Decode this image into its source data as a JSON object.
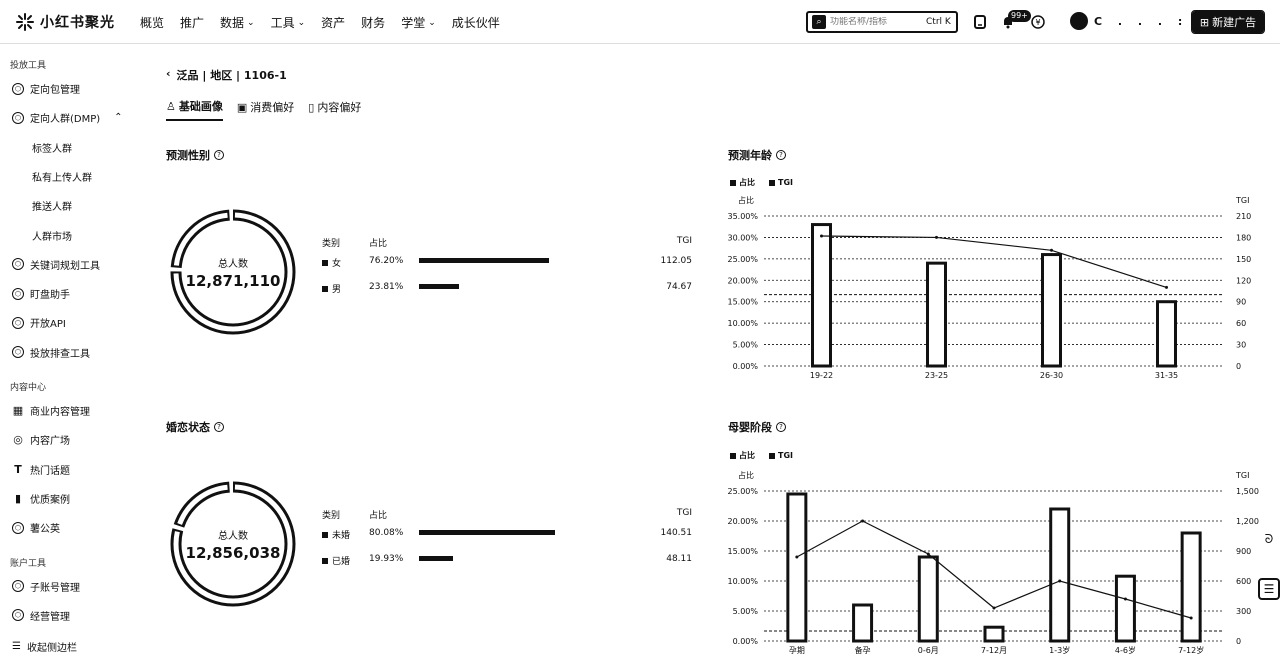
{
  "header": {
    "logo_text": "小红书聚光",
    "nav": [
      {
        "label": "概览",
        "dropdown": false
      },
      {
        "label": "推广",
        "dropdown": false
      },
      {
        "label": "数据",
        "dropdown": true
      },
      {
        "label": "工具",
        "dropdown": true
      },
      {
        "label": "资产",
        "dropdown": false
      },
      {
        "label": "财务",
        "dropdown": false
      },
      {
        "label": "学堂",
        "dropdown": true
      },
      {
        "label": "成长伙伴",
        "dropdown": false
      }
    ],
    "search_placeholder": "功能名称/指标",
    "search_shortcut": "Ctrl K",
    "notification_count": "99+",
    "user_name": "C . . . :",
    "new_ad_label": "新建广告"
  },
  "sidebar": {
    "groups": [
      {
        "title": "投放工具",
        "items": [
          {
            "label": "定向包管理",
            "icon": "hexagon-icon"
          },
          {
            "label": "定向人群(DMP)",
            "icon": "hexagon-icon",
            "expanded": true,
            "children": [
              "标签人群",
              "私有上传人群",
              "推送人群",
              "人群市场"
            ]
          },
          {
            "label": "关键词规划工具",
            "icon": "hexagon-icon"
          },
          {
            "label": "盯盘助手",
            "icon": "hexagon-icon"
          },
          {
            "label": "开放API",
            "icon": "hexagon-icon"
          },
          {
            "label": "投放排查工具",
            "icon": "hexagon-icon"
          }
        ]
      },
      {
        "title": "内容中心",
        "items": [
          {
            "label": "商业内容管理",
            "icon": "grid-icon"
          },
          {
            "label": "内容广场",
            "icon": "planet-icon"
          },
          {
            "label": "热门话题",
            "icon": "text-icon"
          },
          {
            "label": "优质案例",
            "icon": "book-icon"
          },
          {
            "label": "薯公英",
            "icon": "hexagon-icon"
          }
        ]
      },
      {
        "title": "账户工具",
        "items": [
          {
            "label": "子账号管理",
            "icon": "hexagon-icon"
          },
          {
            "label": "经营管理",
            "icon": "hexagon-icon"
          }
        ]
      }
    ],
    "collapse_label": "收起侧边栏"
  },
  "breadcrumb": "泛品 | 地区 | 1106-1",
  "tabs": [
    {
      "label": "基础画像",
      "active": true
    },
    {
      "label": "消费偏好",
      "active": false
    },
    {
      "label": "内容偏好",
      "active": false
    }
  ],
  "gender": {
    "title": "预测性别",
    "total_label": "总人数",
    "total_value": "12,871,110",
    "col_category": "类别",
    "col_share": "占比",
    "col_tgi": "TGI",
    "rows": [
      {
        "label": "女",
        "share": "76.20%",
        "share_value": 0.762,
        "tgi": "112.05"
      },
      {
        "label": "男",
        "share": "23.81%",
        "share_value": 0.2381,
        "tgi": "74.67"
      }
    ]
  },
  "marital": {
    "title": "婚恋状态",
    "total_label": "总人数",
    "total_value": "12,856,038",
    "col_category": "类别",
    "col_share": "占比",
    "col_tgi": "TGI",
    "rows": [
      {
        "label": "未婚",
        "share": "80.08%",
        "share_value": 0.8008,
        "tgi": "140.51"
      },
      {
        "label": "已婚",
        "share": "19.93%",
        "share_value": 0.1993,
        "tgi": "48.11"
      }
    ]
  },
  "age_chart_title": "预测年龄",
  "maternal_chart_title": "母婴阶段",
  "legend": {
    "share": "占比",
    "tgi": "TGI"
  },
  "chart_data": [
    {
      "type": "bar",
      "title": "预测年龄",
      "categories": [
        "19-22",
        "23-25",
        "26-30",
        "31-35"
      ],
      "series": [
        {
          "name": "占比",
          "type": "bar",
          "values": [
            33.0,
            24.0,
            26.0,
            15.0
          ],
          "unit": "%"
        },
        {
          "name": "TGI",
          "type": "line",
          "values": [
            182,
            180,
            162,
            110
          ]
        }
      ],
      "ylabel": "占比",
      "y2label": "TGI",
      "ylim": [
        0,
        35
      ],
      "y_ticks": [
        "0.00%",
        "5.00%",
        "10.00%",
        "15.00%",
        "20.00%",
        "25.00%",
        "30.00%",
        "35.00%"
      ],
      "y2lim": [
        0,
        210
      ],
      "y2_ticks": [
        "0",
        "30",
        "60",
        "90",
        "120",
        "150",
        "180",
        "210"
      ],
      "reference_line_y2": 100,
      "legend": "top-left"
    },
    {
      "type": "bar",
      "title": "母婴阶段",
      "categories": [
        "孕期",
        "备孕",
        "0-6月",
        "7-12月",
        "1-3岁",
        "4-6岁",
        "7-12岁"
      ],
      "series": [
        {
          "name": "占比",
          "type": "bar",
          "values": [
            24.5,
            6.0,
            14.0,
            2.3,
            22.0,
            10.8,
            18.0
          ],
          "unit": "%"
        },
        {
          "name": "TGI",
          "type": "line",
          "values": [
            840,
            1200,
            870,
            330,
            600,
            420,
            230
          ]
        }
      ],
      "ylabel": "占比",
      "y2label": "TGI",
      "ylim": [
        0,
        25
      ],
      "y_ticks": [
        "0.00%",
        "5.00%",
        "10.00%",
        "15.00%",
        "20.00%",
        "25.00%"
      ],
      "y2lim": [
        0,
        1500
      ],
      "y2_ticks": [
        "0",
        "300",
        "600",
        "900",
        "1,200",
        "1,500"
      ],
      "reference_line_y2": 100,
      "legend": "top-left"
    }
  ]
}
